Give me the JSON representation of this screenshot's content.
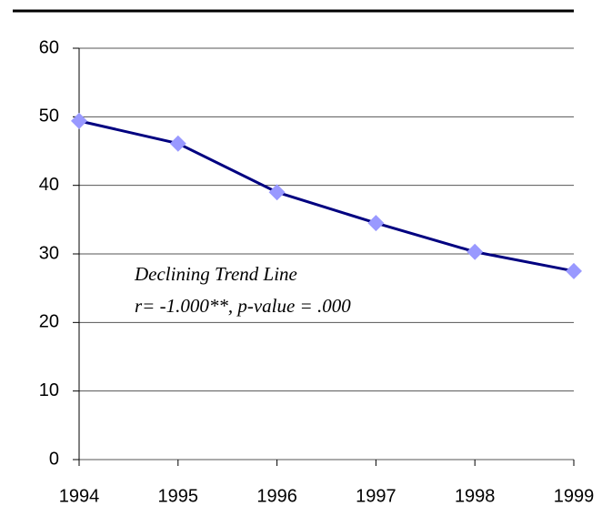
{
  "chart_data": {
    "type": "line",
    "x": [
      1994,
      1995,
      1996,
      1997,
      1998,
      1999
    ],
    "values": [
      49.4,
      46.1,
      39.0,
      34.5,
      30.3,
      27.5
    ],
    "line_color": "#000080",
    "marker_color": "#9999ff",
    "xlim": [
      1994,
      1999
    ],
    "xticks": [
      1994,
      1995,
      1996,
      1997,
      1998,
      1999
    ],
    "ylim": [
      0,
      60
    ],
    "yticks": [
      0,
      10,
      20,
      30,
      40,
      50,
      60
    ],
    "grid": true,
    "annotations": [
      "Declining Trend Line",
      "r= -1.000**, p-value = .000"
    ]
  }
}
